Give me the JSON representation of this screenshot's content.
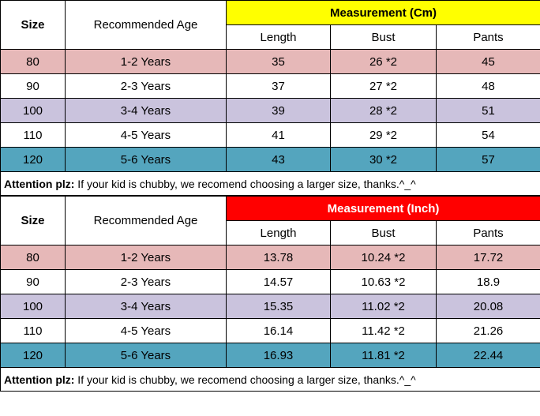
{
  "colors": {
    "yellow": "#ffff00",
    "red": "#ff0000",
    "pink": "#e6b8b8",
    "white": "#ffffff",
    "lavender": "#cac3dd",
    "teal": "#54a5be",
    "black": "#000000"
  },
  "tables": [
    {
      "size_label": "Size",
      "age_label": "Recommended Age",
      "meas_label": "Measurement (Cm)",
      "meas_bg": "#ffff00",
      "meas_text": "#000000",
      "sub_headers": [
        "Length",
        "Bust",
        "Pants"
      ],
      "rows": [
        {
          "bg": "#e6b8b8",
          "size": "80",
          "age": "1-2 Years",
          "m": [
            "35",
            "26 *2",
            "45"
          ]
        },
        {
          "bg": "#ffffff",
          "size": "90",
          "age": "2-3 Years",
          "m": [
            "37",
            "27 *2",
            "48"
          ]
        },
        {
          "bg": "#cac3dd",
          "size": "100",
          "age": "3-4 Years",
          "m": [
            "39",
            "28 *2",
            "51"
          ]
        },
        {
          "bg": "#ffffff",
          "size": "110",
          "age": "4-5 Years",
          "m": [
            "41",
            "29 *2",
            "54"
          ]
        },
        {
          "bg": "#54a5be",
          "size": "120",
          "age": "5-6 Years",
          "m": [
            "43",
            "30 *2",
            "57"
          ]
        }
      ],
      "note_bold": "Attention plz:",
      "note_text": " If your kid is chubby, we recomend choosing a larger size, thanks.^_^"
    },
    {
      "size_label": "Size",
      "age_label": "Recommended Age",
      "meas_label": "Measurement (Inch)",
      "meas_bg": "#ff0000",
      "meas_text": "#ffffff",
      "sub_headers": [
        "Length",
        "Bust",
        "Pants"
      ],
      "rows": [
        {
          "bg": "#e6b8b8",
          "size": "80",
          "age": "1-2 Years",
          "m": [
            "13.78",
            "10.24 *2",
            "17.72"
          ]
        },
        {
          "bg": "#ffffff",
          "size": "90",
          "age": "2-3 Years",
          "m": [
            "14.57",
            "10.63 *2",
            "18.9"
          ]
        },
        {
          "bg": "#cac3dd",
          "size": "100",
          "age": "3-4 Years",
          "m": [
            "15.35",
            "11.02 *2",
            "20.08"
          ]
        },
        {
          "bg": "#ffffff",
          "size": "110",
          "age": "4-5 Years",
          "m": [
            "16.14",
            "11.42 *2",
            "21.26"
          ]
        },
        {
          "bg": "#54a5be",
          "size": "120",
          "age": "5-6 Years",
          "m": [
            "16.93",
            "11.81 *2",
            "22.44"
          ]
        }
      ],
      "note_bold": "Attention plz:",
      "note_text": " If your kid is chubby, we recomend choosing a larger size, thanks.^_^"
    }
  ]
}
